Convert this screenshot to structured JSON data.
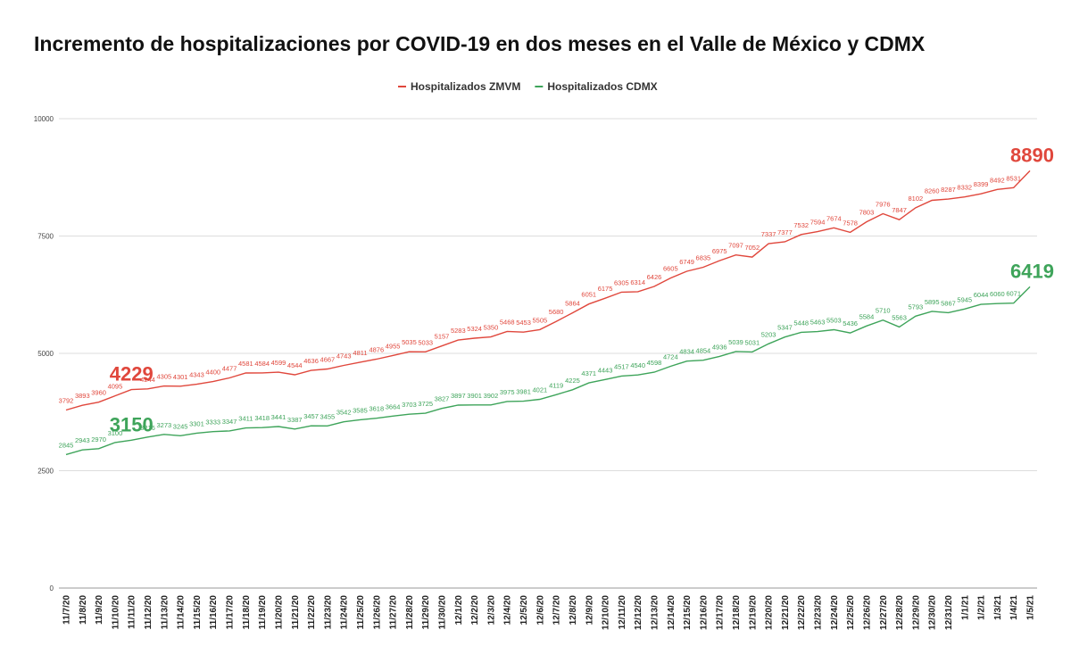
{
  "chart_data": {
    "type": "line",
    "title": "Incremento de hospitalizaciones por COVID-19 en dos meses en el Valle de México y CDMX",
    "xlabel": "",
    "ylabel": "",
    "ylim": [
      0,
      10000
    ],
    "yticks": [
      0,
      2500,
      5000,
      7500,
      10000
    ],
    "grid": true,
    "legend_position": "top-center",
    "categories": [
      "11/7/20",
      "11/8/20",
      "11/9/20",
      "11/10/20",
      "11/11/20",
      "11/12/20",
      "11/13/20",
      "11/14/20",
      "11/15/20",
      "11/16/20",
      "11/17/20",
      "11/18/20",
      "11/19/20",
      "11/20/20",
      "11/21/20",
      "11/22/20",
      "11/23/20",
      "11/24/20",
      "11/25/20",
      "11/26/20",
      "11/27/20",
      "11/28/20",
      "11/29/20",
      "11/30/20",
      "12/1/20",
      "12/2/20",
      "12/3/20",
      "12/4/20",
      "12/5/20",
      "12/6/20",
      "12/7/20",
      "12/8/20",
      "12/9/20",
      "12/10/20",
      "12/11/20",
      "12/12/20",
      "12/13/20",
      "12/14/20",
      "12/15/20",
      "12/16/20",
      "12/17/20",
      "12/18/20",
      "12/19/20",
      "12/20/20",
      "12/21/20",
      "12/22/20",
      "12/23/20",
      "12/24/20",
      "12/25/20",
      "12/26/20",
      "12/27/20",
      "12/28/20",
      "12/29/20",
      "12/30/20",
      "12/31/20",
      "1/1/21",
      "1/2/21",
      "1/3/21",
      "1/4/21",
      "1/5/21"
    ],
    "series": [
      {
        "name": "Hospitalizados ZMVM",
        "color": "#e0473c",
        "values": [
          3792,
          3893,
          3960,
          4095,
          4229,
          4244,
          4305,
          4301,
          4343,
          4400,
          4477,
          4581,
          4584,
          4599,
          4544,
          4636,
          4667,
          4743,
          4811,
          4876,
          4955,
          5035,
          5033,
          5157,
          5283,
          5324,
          5350,
          5468,
          5453,
          5505,
          5680,
          5864,
          6051,
          6175,
          6305,
          6314,
          6426,
          6605,
          6749,
          6835,
          6975,
          7097,
          7052,
          7337,
          7377,
          7532,
          7594,
          7674,
          7578,
          7803,
          7976,
          7847,
          8102,
          8260,
          8287,
          8332,
          8399,
          8492,
          8531,
          8890
        ],
        "highlight": [
          {
            "category": "11/11/20",
            "label": "4229"
          },
          {
            "category": "1/5/21",
            "label": "8890"
          }
        ]
      },
      {
        "name": "Hospitalizados CDMX",
        "color": "#3ea45a",
        "values": [
          2845,
          2943,
          2970,
          3100,
          3150,
          3216,
          3273,
          3245,
          3301,
          3333,
          3347,
          3411,
          3418,
          3441,
          3387,
          3457,
          3455,
          3542,
          3585,
          3618,
          3664,
          3703,
          3725,
          3827,
          3897,
          3901,
          3902,
          3975,
          3981,
          4021,
          4119,
          4225,
          4371,
          4443,
          4517,
          4540,
          4598,
          4724,
          4834,
          4854,
          4936,
          5039,
          5031,
          5203,
          5347,
          5448,
          5463,
          5503,
          5436,
          5584,
          5710,
          5563,
          5793,
          5895,
          5867,
          5945,
          6044,
          6060,
          6071,
          6419
        ],
        "highlight": [
          {
            "category": "11/11/20",
            "label": "3150"
          },
          {
            "category": "1/5/21",
            "label": "6419"
          }
        ]
      }
    ]
  }
}
